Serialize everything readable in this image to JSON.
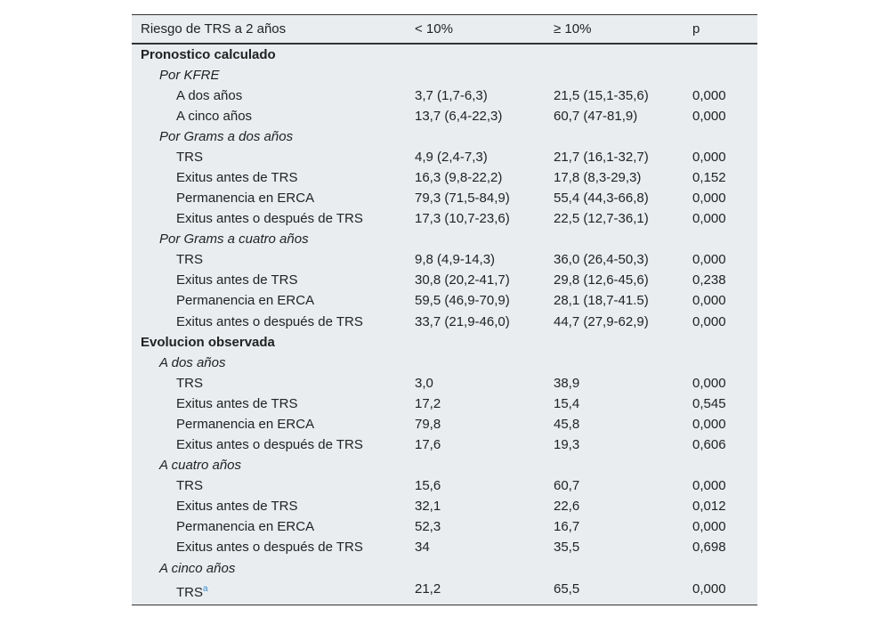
{
  "header": [
    "Riesgo de TRS a 2 años",
    "< 10%",
    "≥ 10%",
    "p"
  ],
  "sections": [
    {
      "title": "Pronostico calculado",
      "groups": [
        {
          "title": "Por KFRE",
          "rows": [
            [
              "A dos años",
              "3,7 (1,7-6,3)",
              "21,5 (15,1-35,6)",
              "0,000"
            ],
            [
              "A cinco años",
              "13,7 (6,4-22,3)",
              "60,7 (47-81,9)",
              "0,000"
            ]
          ]
        },
        {
          "title": "Por Grams a dos años",
          "rows": [
            [
              "TRS",
              "4,9 (2,4-7,3)",
              "21,7 (16,1-32,7)",
              "0,000"
            ],
            [
              "Exitus antes de TRS",
              "16,3 (9,8-22,2)",
              "17,8 (8,3-29,3)",
              "0,152"
            ],
            [
              "Permanencia en ERCA",
              "79,3 (71,5-84,9)",
              "55,4 (44,3-66,8)",
              "0,000"
            ],
            [
              "Exitus antes o después de TRS",
              "17,3 (10,7-23,6)",
              "22,5 (12,7-36,1)",
              "0,000"
            ]
          ]
        },
        {
          "title": "Por Grams a cuatro años",
          "rows": [
            [
              "TRS",
              "9,8 (4,9-14,3)",
              "36,0 (26,4-50,3)",
              "0,000"
            ],
            [
              "Exitus antes de TRS",
              "30,8 (20,2-41,7)",
              "29,8 (12,6-45,6)",
              "0,238"
            ],
            [
              "Permanencia en ERCA",
              "59,5 (46,9-70,9)",
              "28,1 (18,7-41.5)",
              "0,000"
            ],
            [
              "Exitus antes o después de TRS",
              "33,7 (21,9-46,0)",
              "44,7 (27,9-62,9)",
              "0,000"
            ]
          ]
        }
      ]
    },
    {
      "title": "Evolucion observada",
      "groups": [
        {
          "title": "A dos años",
          "rows": [
            [
              "TRS",
              "3,0",
              "38,9",
              "0,000"
            ],
            [
              "Exitus antes de TRS",
              "17,2",
              "15,4",
              "0,545"
            ],
            [
              "Permanencia en ERCA",
              "79,8",
              "45,8",
              "0,000"
            ],
            [
              "Exitus antes o después de TRS",
              "17,6",
              "19,3",
              "0,606"
            ]
          ]
        },
        {
          "title": "A cuatro años",
          "rows": [
            [
              "TRS",
              "15,6",
              "60,7",
              "0,000"
            ],
            [
              "Exitus antes de TRS",
              "32,1",
              "22,6",
              "0,012"
            ],
            [
              "Permanencia en ERCA",
              "52,3",
              "16,7",
              "0,000"
            ],
            [
              "Exitus antes o después de TRS",
              "34",
              "35,5",
              "0,698"
            ]
          ]
        },
        {
          "title": "A cinco años",
          "rows": [
            [
              {
                "text": "TRS",
                "sup": "a"
              },
              "21,2",
              "65,5",
              "0,000"
            ]
          ]
        }
      ]
    }
  ]
}
